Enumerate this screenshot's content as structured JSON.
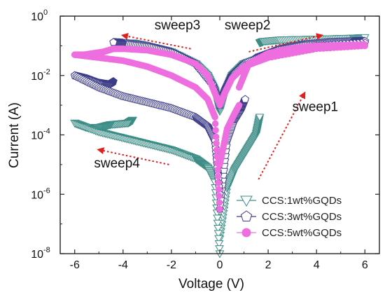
{
  "chart_data": {
    "type": "scatter",
    "title": "",
    "xlabel": "Voltage (V)",
    "ylabel": "Current (A)",
    "xlim": [
      -6.6,
      6.6
    ],
    "ylim_exp": [
      -8,
      0
    ],
    "log_y": true,
    "grid": false,
    "legend_position": "bottom-right",
    "x_ticks": [
      {
        "v": -6,
        "label": "-6"
      },
      {
        "v": -4,
        "label": "-4"
      },
      {
        "v": -2,
        "label": "-2"
      },
      {
        "v": 0,
        "label": "0"
      },
      {
        "v": 2,
        "label": "2"
      },
      {
        "v": 4,
        "label": "4"
      },
      {
        "v": 6,
        "label": "6"
      }
    ],
    "y_ticks": [
      {
        "e": 0,
        "base": "10",
        "exp": "0"
      },
      {
        "e": -2,
        "base": "10",
        "exp": "-2"
      },
      {
        "e": -4,
        "base": "10",
        "exp": "-4"
      },
      {
        "e": -6,
        "base": "10",
        "exp": "-6"
      },
      {
        "e": -8,
        "base": "10",
        "exp": "-8"
      }
    ],
    "annotations": [
      {
        "text": "sweep1",
        "x": 3.0,
        "ye": -3.2
      },
      {
        "text": "sweep2",
        "x": 0.2,
        "ye": -0.45
      },
      {
        "text": "sweep3",
        "x": -2.7,
        "ye": -0.45
      },
      {
        "text": "sweep4",
        "x": -5.2,
        "ye": -5.1
      }
    ],
    "arrows": [
      {
        "name": "sweep1-arrow",
        "from": {
          "x": 1.6,
          "ye": -5.5
        },
        "to": {
          "x": 3.5,
          "ye": -2.6
        }
      },
      {
        "name": "sweep2-arrow",
        "from": {
          "x": 1.2,
          "ye": -1.2
        },
        "to": {
          "x": 4.2,
          "ye": -0.65
        }
      },
      {
        "name": "sweep3-arrow",
        "from": {
          "x": -1.2,
          "ye": -1.1
        },
        "to": {
          "x": -4.0,
          "ye": -0.65
        }
      },
      {
        "name": "sweep4-arrow",
        "from": {
          "x": -2.1,
          "ye": -5.0
        },
        "to": {
          "x": -5.0,
          "ye": -4.5
        }
      }
    ],
    "series": [
      {
        "name": "CCS:1wt%GQDs",
        "marker": "triangle-down",
        "color": "#3c8c86",
        "branches": [
          {
            "x": [
              0,
              0.3,
              0.6,
              0.9,
              1.2,
              1.5,
              1.65
            ],
            "y": [
              -7.5,
              -5.8,
              -5.2,
              -4.8,
              -4.4,
              -4.0,
              -3.4
            ]
          },
          {
            "x": [
              1.65,
              1.8,
              2.5,
              3.5,
              4.5,
              5.5,
              6
            ],
            "y": [
              -0.9,
              -0.85,
              -0.8,
              -0.78,
              -0.76,
              -0.74,
              -0.72
            ]
          },
          {
            "x": [
              6,
              4,
              2,
              1,
              0.5,
              0.2,
              0
            ],
            "y": [
              -0.9,
              -1.0,
              -1.3,
              -1.6,
              -2.0,
              -2.6,
              -3.2
            ]
          },
          {
            "x": [
              0,
              -0.2,
              -0.5,
              -1,
              -2,
              -3,
              -3.6
            ],
            "y": [
              -3.2,
              -2.5,
              -2.0,
              -1.6,
              -1.2,
              -1.0,
              -0.9
            ]
          },
          {
            "x": [
              -3.6,
              -3.8,
              -4.5,
              -5,
              -5.5,
              -6
            ],
            "y": [
              -3.5,
              -3.6,
              -3.65,
              -3.75,
              -3.75,
              -3.6
            ]
          },
          {
            "x": [
              -6,
              -5,
              -4,
              -3,
              -2,
              -1,
              -0.5,
              -0.2,
              0
            ],
            "y": [
              -3.6,
              -3.9,
              -4.1,
              -4.3,
              -4.5,
              -4.8,
              -5.1,
              -5.6,
              -8.0
            ]
          }
        ]
      },
      {
        "name": "CCS:3wt%GQDs",
        "marker": "pentagon",
        "color": "#3c3c88",
        "branches": [
          {
            "x": [
              0,
              0.3,
              0.6,
              0.9,
              1.05
            ],
            "y": [
              -6.5,
              -4.2,
              -3.5,
              -3.1,
              -2.8
            ]
          },
          {
            "x": [
              1.05,
              1.5,
              2.5,
              3.5,
              4.5,
              5.5,
              6
            ],
            "y": [
              -1.7,
              -1.4,
              -1.1,
              -0.95,
              -0.88,
              -0.85,
              -0.84
            ]
          },
          {
            "x": [
              6,
              4,
              2,
              1,
              0.5,
              0.2,
              0
            ],
            "y": [
              -0.9,
              -1.0,
              -1.3,
              -1.6,
              -2.0,
              -2.5,
              -3.0
            ]
          },
          {
            "x": [
              0,
              -0.3,
              -1,
              -2,
              -3,
              -4,
              -4.4
            ],
            "y": [
              -3.0,
              -2.3,
              -1.6,
              -1.2,
              -1.0,
              -0.9,
              -0.88
            ]
          },
          {
            "x": [
              -4.4,
              -4.6,
              -5,
              -5.5,
              -6
            ],
            "y": [
              -2.2,
              -2.3,
              -2.25,
              -2.1,
              -2.0
            ]
          },
          {
            "x": [
              -6,
              -5,
              -4,
              -3,
              -2,
              -1,
              -0.5,
              -0.2,
              0
            ],
            "y": [
              -2.0,
              -2.4,
              -2.7,
              -2.9,
              -3.1,
              -3.4,
              -3.7,
              -4.2,
              -6.0
            ]
          }
        ]
      },
      {
        "name": "CCS:5wt%GQDs",
        "marker": "circle",
        "color": "#ee6ee0",
        "branches": [
          {
            "x": [
              0,
              0.3,
              0.6,
              0.8
            ],
            "y": [
              -5.0,
              -3.8,
              -3.3,
              -3.0
            ]
          },
          {
            "x": [
              0.8,
              1.2,
              2,
              3,
              4,
              5,
              6
            ],
            "y": [
              -2.4,
              -1.6,
              -1.25,
              -1.08,
              -1.0,
              -0.98,
              -0.96
            ]
          },
          {
            "x": [
              6,
              4,
              2,
              1,
              0.5,
              0.2,
              0
            ],
            "y": [
              -1.0,
              -1.1,
              -1.4,
              -1.7,
              -2.1,
              -2.6,
              -3.0
            ]
          },
          {
            "x": [
              0,
              -0.5,
              -1,
              -2,
              -3,
              -4,
              -4.4
            ],
            "y": [
              -3.0,
              -2.0,
              -1.6,
              -1.3,
              -1.15,
              -1.1,
              -1.1
            ]
          },
          {
            "x": [
              -4.4,
              -4.8,
              -5.2,
              -5.6,
              -6
            ],
            "y": [
              -1.1,
              -1.2,
              -1.25,
              -1.3,
              -1.3
            ]
          },
          {
            "x": [
              -6,
              -5,
              -4,
              -3,
              -2,
              -1,
              -0.5,
              -0.2,
              0
            ],
            "y": [
              -1.3,
              -1.4,
              -1.5,
              -1.7,
              -2.0,
              -2.4,
              -2.8,
              -3.4,
              -6.5
            ]
          }
        ]
      }
    ]
  }
}
